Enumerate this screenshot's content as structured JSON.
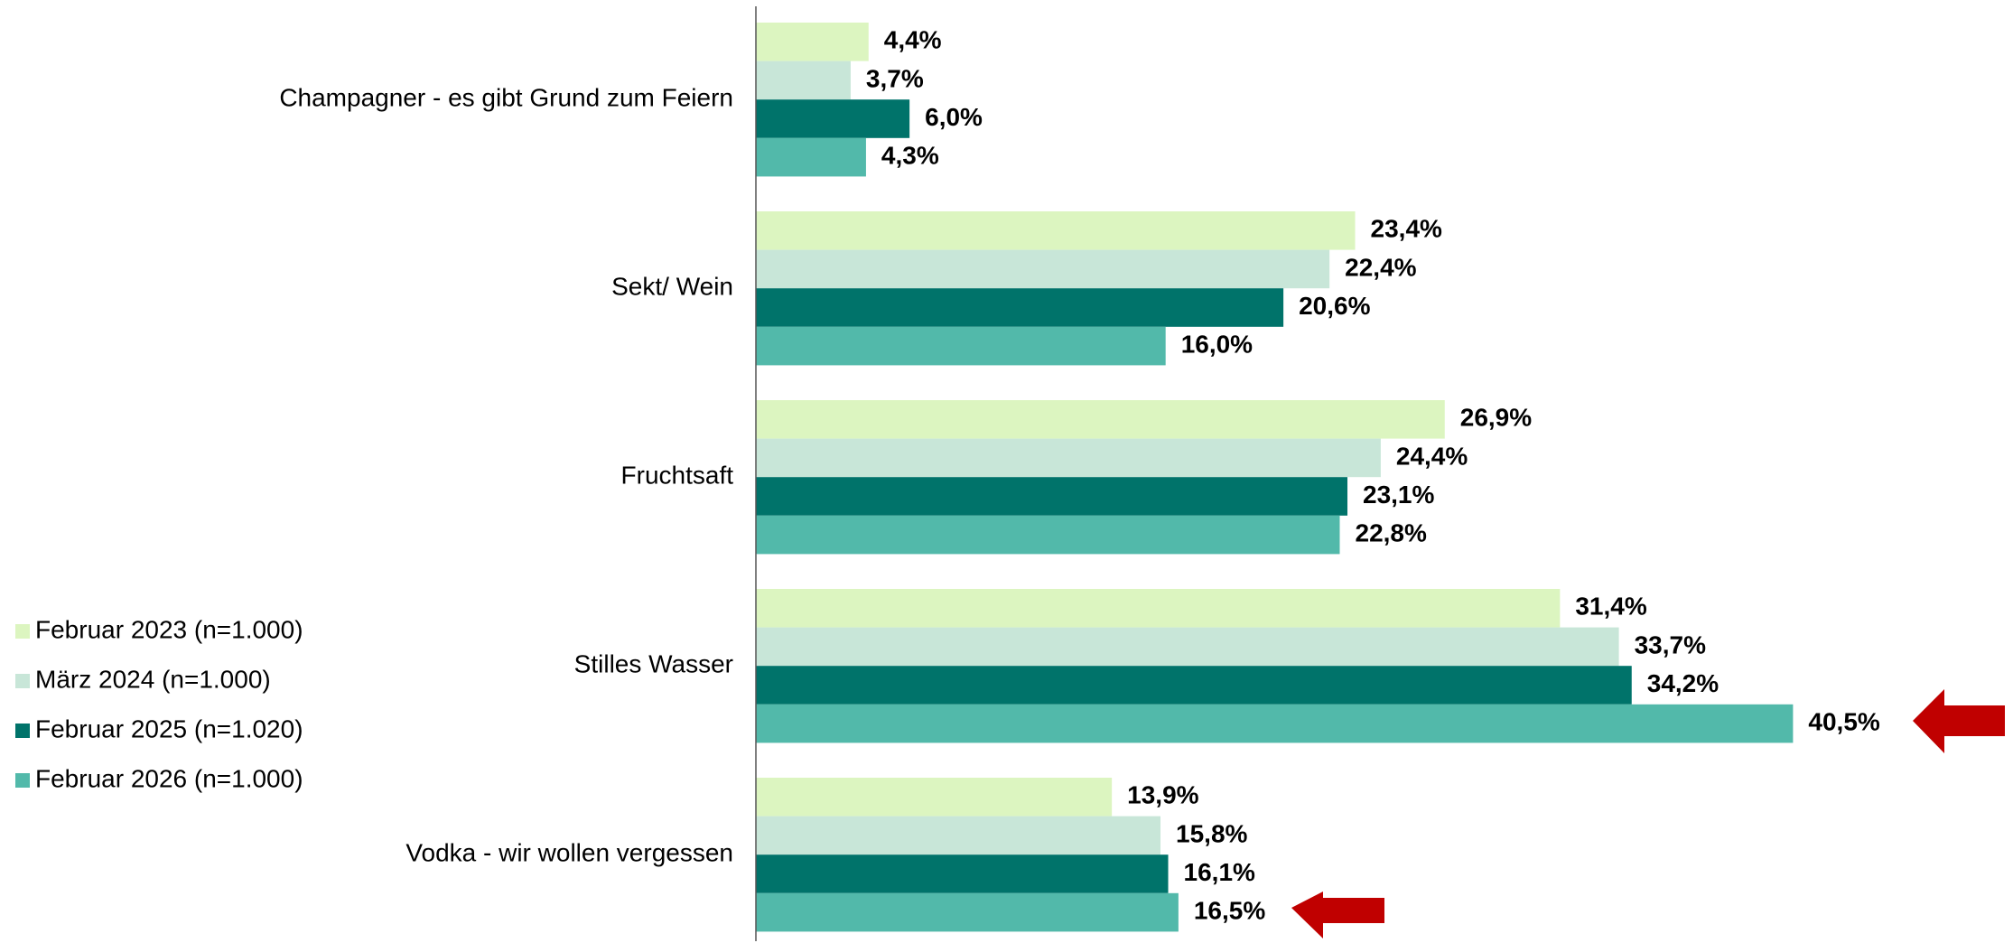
{
  "chart_data": {
    "type": "bar",
    "orientation": "horizontal",
    "categories": [
      "Champagner - es gibt Grund zum Feiern",
      "Sekt/ Wein",
      "Fruchtsaft",
      "Stilles Wasser",
      "Vodka - wir wollen vergessen"
    ],
    "series": [
      {
        "name": "Februar 2023 (n=1.000)",
        "color": "#dcf5c0",
        "values": [
          4.4,
          23.4,
          26.9,
          31.4,
          13.9
        ],
        "value_labels": [
          "4,4%",
          "23,4%",
          "26,9%",
          "31,4%",
          "13,9%"
        ]
      },
      {
        "name": "März 2024 (n=1.000)",
        "color": "#c8e6d8",
        "values": [
          3.7,
          22.4,
          24.4,
          33.7,
          15.8
        ],
        "value_labels": [
          "3,7%",
          "22,4%",
          "24,4%",
          "33,7%",
          "15,8%"
        ]
      },
      {
        "name": "Februar 2025 (n=1.020)",
        "color": "#00736a",
        "values": [
          6.0,
          20.6,
          23.1,
          34.2,
          16.1
        ],
        "value_labels": [
          "6,0%",
          "20,6%",
          "23,1%",
          "34,2%",
          "16,1%"
        ]
      },
      {
        "name": "Februar 2026 (n=1.000)",
        "color": "#52b9aa",
        "values": [
          4.3,
          16.0,
          22.8,
          40.5,
          16.5
        ],
        "value_labels": [
          "4,3%",
          "16,0%",
          "22,8%",
          "40,5%",
          "16,5%"
        ]
      }
    ],
    "xlim": [
      0,
      45
    ],
    "legend": "left"
  }
}
